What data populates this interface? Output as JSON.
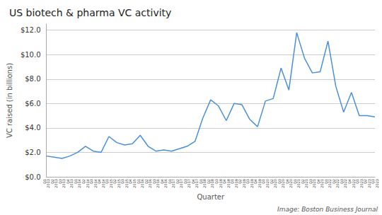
{
  "chart_data": {
    "type": "line",
    "title": "US biotech & pharma VC activity",
    "xlabel": "Quarter",
    "ylabel": "VC raised (in billions)",
    "annotation": "Image: Boston Business Journal",
    "color": "#4a90d9",
    "grid": true,
    "categories": [
      "Q1\n2013",
      "Q2\n2013",
      "Q3\n2013",
      "Q4\n2013",
      "Q1\n2014",
      "Q2\n2014",
      "Q3\n2014",
      "Q4\n2014",
      "Q1\n2015",
      "Q2\n2015",
      "Q3\n2015",
      "Q4\n2015",
      "Q1\n2016",
      "Q2\n2016",
      "Q3\n2016",
      "Q4\n2016",
      "Q1\n2017",
      "Q2\n2017",
      "Q3\n2017",
      "Q4\n2017",
      "Q1\n2018",
      "Q2\n2018",
      "Q3\n2018",
      "Q4\n2018",
      "Q1\n2019",
      "Q2\n2019",
      "Q3\n2019",
      "Q4\n2019",
      "Q1\n2020",
      "Q2\n2020",
      "Q3\n2020",
      "Q4\n2020",
      "Q1\n2021",
      "Q2\n2021",
      "Q3\n2021",
      "Q4\n2021",
      "Q1\n2022",
      "Q2\n2022",
      "Q3\n2022",
      "Q4\n2022",
      "Q1\n2023",
      "Q2\n2023",
      "Q3\n2023"
    ],
    "values": [
      1.7,
      1.6,
      1.5,
      1.7,
      2.0,
      2.5,
      2.1,
      2.0,
      3.3,
      2.8,
      2.6,
      2.7,
      3.4,
      2.5,
      2.1,
      2.2,
      2.1,
      2.3,
      2.5,
      2.9,
      4.8,
      6.3,
      5.8,
      4.6,
      6.0,
      5.9,
      4.7,
      4.1,
      6.2,
      6.4,
      8.9,
      7.1,
      11.8,
      9.7,
      8.5,
      8.6,
      11.1,
      7.4,
      5.3,
      6.9,
      5.0,
      5.0,
      4.9
    ],
    "ylim": [
      0,
      12.5
    ],
    "yticks": [
      {
        "value": 0,
        "label": "$0.0"
      },
      {
        "value": 2,
        "label": "$2.0"
      },
      {
        "value": 4,
        "label": "$4.0"
      },
      {
        "value": 6,
        "label": "$6.0"
      },
      {
        "value": 8,
        "label": "$8.0"
      },
      {
        "value": 10,
        "label": "$10.0"
      },
      {
        "value": 12,
        "label": "$12.0"
      }
    ]
  }
}
